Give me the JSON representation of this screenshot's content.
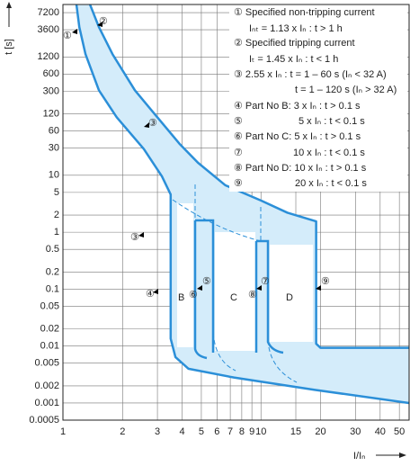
{
  "chart_data": {
    "type": "line",
    "y_label": "t [s]",
    "x_label": "I/Iₙ",
    "log_x": true,
    "log_y": true,
    "grid": true,
    "xlim": [
      1,
      56
    ],
    "xticks": [
      1,
      2,
      3,
      4,
      5,
      6,
      7,
      8,
      9,
      10,
      15,
      20,
      30,
      40,
      50
    ],
    "ylim": [
      0.0005,
      10000
    ],
    "yticks": [
      0.0005,
      0.001,
      0.002,
      0.005,
      0.01,
      0.02,
      0.05,
      0.1,
      0.2,
      0.5,
      1,
      2,
      5,
      10,
      30,
      60,
      120,
      300,
      600,
      1200,
      3600,
      7200
    ],
    "band_color": "#d4ecfa",
    "series": [
      {
        "color": "#2b8fd8",
        "x": [
          1.37,
          1.52,
          1.78,
          2.31,
          3.0,
          3.9,
          4.8,
          6.6,
          10,
          13.6,
          19,
          19,
          20,
          56
        ],
        "values": [
          10000,
          4000,
          1340,
          310,
          104,
          35,
          16.7,
          6.7,
          3.6,
          2.2,
          1.55,
          0.011,
          0.0093,
          0.0093
        ]
      },
      {
        "color": "#2b8fd8",
        "x": [
          1.17,
          1.21,
          1.3,
          1.52,
          1.87,
          2.56,
          3.16,
          3.5,
          3.5,
          3.7,
          4.3,
          7.3,
          18.7,
          56
        ],
        "values": [
          10000,
          4000,
          1340,
          310,
          104,
          29,
          9.6,
          4.6,
          0.0135,
          0.0064,
          0.004,
          0.0028,
          0.0017,
          0.001
        ]
      }
    ],
    "annotations": [
      "①",
      "②",
      "③",
      "③",
      "④",
      "⑤",
      "⑥",
      "⑦",
      "⑧",
      "⑨",
      "B",
      "C",
      "D"
    ],
    "legend_text": [
      "① Specified non-tripping current",
      "Iₙₜ = 1.13 x Iₙ : t > 1 h",
      "② Specified tripping current",
      "Iₜ = 1.45 x Iₙ : t < 1 h",
      "③ 2.55 x Iₙ : t = 1 – 60 s (Iₙ < 32 A)",
      "t = 1 – 120 s (Iₙ > 32 A)",
      "④ Part No B:  3 x Iₙ : t > 0.1 s",
      "⑤",
      "5 x Iₙ : t < 0.1 s",
      "⑥ Part No C:  5 x Iₙ : t > 0.1 s",
      "⑦",
      "10 x Iₙ : t < 0.1 s",
      "⑧ Part No D: 10 x Iₙ : t > 0.1 s",
      "⑨",
      "20 x Iₙ : t < 0.1 s"
    ]
  }
}
